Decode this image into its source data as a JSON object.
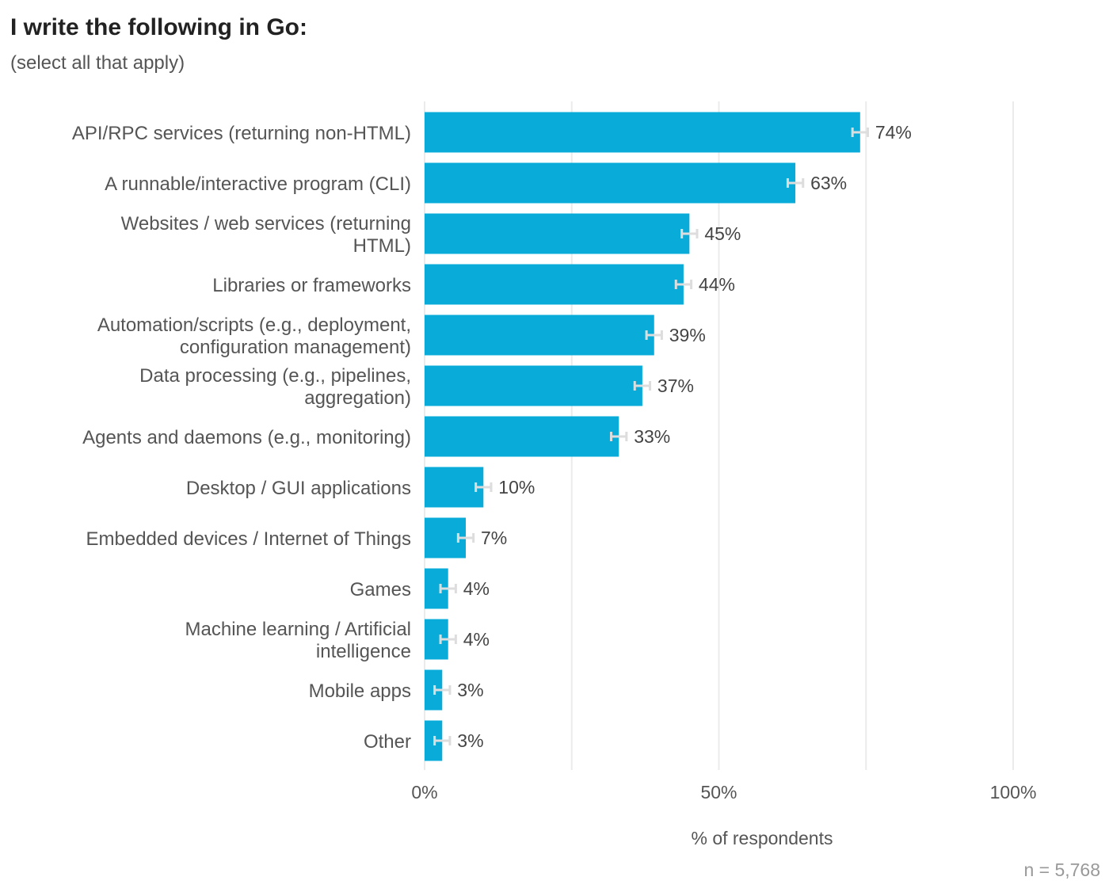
{
  "title": "I write the following in Go:",
  "subtitle": "(select all that apply)",
  "note": "n =  5,768",
  "colors": {
    "bar": "#09acd8",
    "error_bar": "#dddddd",
    "grid": "#ebebeb"
  },
  "chart_data": {
    "type": "bar",
    "orientation": "horizontal",
    "categories": [
      [
        "API/RPC services (returning non-HTML)"
      ],
      [
        "A runnable/interactive program (CLI)"
      ],
      [
        "Websites / web services (returning",
        "HTML)"
      ],
      [
        "Libraries or frameworks"
      ],
      [
        "Automation/scripts (e.g., deployment,",
        "configuration management)"
      ],
      [
        "Data processing (e.g., pipelines,",
        "aggregation)"
      ],
      [
        "Agents and daemons (e.g., monitoring)"
      ],
      [
        "Desktop / GUI applications"
      ],
      [
        "Embedded devices / Internet of Things"
      ],
      [
        "Games"
      ],
      [
        "Machine learning / Artificial",
        "intelligence"
      ],
      [
        "Mobile apps"
      ],
      [
        "Other"
      ]
    ],
    "values": [
      74,
      63,
      45,
      44,
      39,
      37,
      33,
      10,
      7,
      4,
      4,
      3,
      3
    ],
    "data_labels": [
      "74%",
      "63%",
      "45%",
      "44%",
      "39%",
      "37%",
      "33%",
      "10%",
      "7%",
      "4%",
      "4%",
      "3%",
      "3%"
    ],
    "error_bars": true,
    "xlabel": "% of respondents",
    "xlim": [
      0,
      100
    ],
    "xticks": [
      0,
      50,
      100
    ],
    "xtick_labels": [
      "0%",
      "50%",
      "100%"
    ],
    "gridlines": [
      0,
      25,
      50,
      75,
      100
    ],
    "grid": true,
    "legend": "none"
  }
}
